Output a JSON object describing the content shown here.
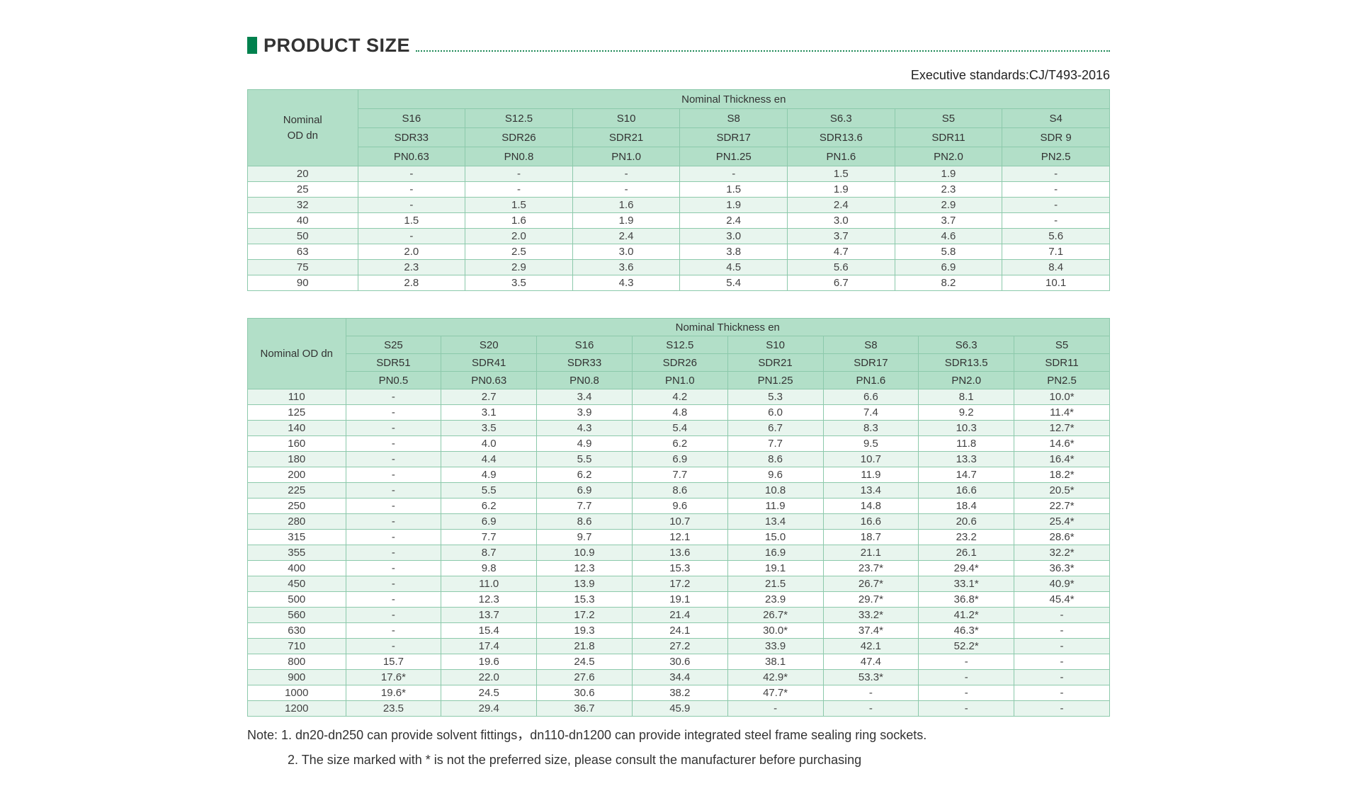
{
  "header": {
    "title": "PRODUCT SIZE",
    "standard": "Executive standards:CJ/T493-2016"
  },
  "colors": {
    "accent_green": "#00814e",
    "table_header_fill": "#b2dfc8",
    "row_stripe_fill": "#e8f5ee",
    "table_border": "#8cc9ab",
    "dotted_rule_green": "#1f8a57",
    "title_text": "#333333"
  },
  "tables": [
    {
      "name": "product-size-dn20-dn90",
      "corner_lines": [
        "Nominal",
        "OD dn"
      ],
      "span_header": "Nominal Thickness en",
      "s": [
        "S16",
        "S12.5",
        "S10",
        "S8",
        "S6.3",
        "S5",
        "S4"
      ],
      "sdr": [
        "SDR33",
        "SDR26",
        "SDR21",
        "SDR17",
        "SDR13.6",
        "SDR11",
        "SDR 9"
      ],
      "pn": [
        "PN0.63",
        "PN0.8",
        "PN1.0",
        "PN1.25",
        "PN1.6",
        "PN2.0",
        "PN2.5"
      ],
      "rows": [
        {
          "dn": "20",
          "values": [
            "-",
            "-",
            "-",
            "-",
            "1.5",
            "1.9",
            "-"
          ]
        },
        {
          "dn": "25",
          "values": [
            "-",
            "-",
            "-",
            "1.5",
            "1.9",
            "2.3",
            "-"
          ]
        },
        {
          "dn": "32",
          "values": [
            "-",
            "1.5",
            "1.6",
            "1.9",
            "2.4",
            "2.9",
            "-"
          ]
        },
        {
          "dn": "40",
          "values": [
            "1.5",
            "1.6",
            "1.9",
            "2.4",
            "3.0",
            "3.7",
            "-"
          ]
        },
        {
          "dn": "50",
          "values": [
            "-",
            "2.0",
            "2.4",
            "3.0",
            "3.7",
            "4.6",
            "5.6"
          ]
        },
        {
          "dn": "63",
          "values": [
            "2.0",
            "2.5",
            "3.0",
            "3.8",
            "4.7",
            "5.8",
            "7.1"
          ]
        },
        {
          "dn": "75",
          "values": [
            "2.3",
            "2.9",
            "3.6",
            "4.5",
            "5.6",
            "6.9",
            "8.4"
          ]
        },
        {
          "dn": "90",
          "values": [
            "2.8",
            "3.5",
            "4.3",
            "5.4",
            "6.7",
            "8.2",
            "10.1"
          ]
        }
      ]
    },
    {
      "name": "product-size-dn110-dn1200",
      "corner_lines": [
        "Nominal OD dn"
      ],
      "span_header": "Nominal Thickness en",
      "s": [
        "S25",
        "S20",
        "S16",
        "S12.5",
        "S10",
        "S8",
        "S6.3",
        "S5"
      ],
      "sdr": [
        "SDR51",
        "SDR41",
        "SDR33",
        "SDR26",
        "SDR21",
        "SDR17",
        "SDR13.5",
        "SDR11"
      ],
      "pn": [
        "PN0.5",
        "PN0.63",
        "PN0.8",
        "PN1.0",
        "PN1.25",
        "PN1.6",
        "PN2.0",
        "PN2.5"
      ],
      "rows": [
        {
          "dn": "110",
          "values": [
            "-",
            "2.7",
            "3.4",
            "4.2",
            "5.3",
            "6.6",
            "8.1",
            "10.0*"
          ]
        },
        {
          "dn": "125",
          "values": [
            "-",
            "3.1",
            "3.9",
            "4.8",
            "6.0",
            "7.4",
            "9.2",
            "11.4*"
          ]
        },
        {
          "dn": "140",
          "values": [
            "-",
            "3.5",
            "4.3",
            "5.4",
            "6.7",
            "8.3",
            "10.3",
            "12.7*"
          ]
        },
        {
          "dn": "160",
          "values": [
            "-",
            "4.0",
            "4.9",
            "6.2",
            "7.7",
            "9.5",
            "11.8",
            "14.6*"
          ]
        },
        {
          "dn": "180",
          "values": [
            "-",
            "4.4",
            "5.5",
            "6.9",
            "8.6",
            "10.7",
            "13.3",
            "16.4*"
          ]
        },
        {
          "dn": "200",
          "values": [
            "-",
            "4.9",
            "6.2",
            "7.7",
            "9.6",
            "11.9",
            "14.7",
            "18.2*"
          ]
        },
        {
          "dn": "225",
          "values": [
            "-",
            "5.5",
            "6.9",
            "8.6",
            "10.8",
            "13.4",
            "16.6",
            "20.5*"
          ]
        },
        {
          "dn": "250",
          "values": [
            "-",
            "6.2",
            "7.7",
            "9.6",
            "11.9",
            "14.8",
            "18.4",
            "22.7*"
          ]
        },
        {
          "dn": "280",
          "values": [
            "-",
            "6.9",
            "8.6",
            "10.7",
            "13.4",
            "16.6",
            "20.6",
            "25.4*"
          ]
        },
        {
          "dn": "315",
          "values": [
            "-",
            "7.7",
            "9.7",
            "12.1",
            "15.0",
            "18.7",
            "23.2",
            "28.6*"
          ]
        },
        {
          "dn": "355",
          "values": [
            "-",
            "8.7",
            "10.9",
            "13.6",
            "16.9",
            "21.1",
            "26.1",
            "32.2*"
          ]
        },
        {
          "dn": "400",
          "values": [
            "-",
            "9.8",
            "12.3",
            "15.3",
            "19.1",
            "23.7*",
            "29.4*",
            "36.3*"
          ]
        },
        {
          "dn": "450",
          "values": [
            "-",
            "11.0",
            "13.9",
            "17.2",
            "21.5",
            "26.7*",
            "33.1*",
            "40.9*"
          ]
        },
        {
          "dn": "500",
          "values": [
            "-",
            "12.3",
            "15.3",
            "19.1",
            "23.9",
            "29.7*",
            "36.8*",
            "45.4*"
          ]
        },
        {
          "dn": "560",
          "values": [
            "-",
            "13.7",
            "17.2",
            "21.4",
            "26.7*",
            "33.2*",
            "41.2*",
            "-"
          ]
        },
        {
          "dn": "630",
          "values": [
            "-",
            "15.4",
            "19.3",
            "24.1",
            "30.0*",
            "37.4*",
            "46.3*",
            "-"
          ]
        },
        {
          "dn": "710",
          "values": [
            "-",
            "17.4",
            "21.8",
            "27.2",
            "33.9",
            "42.1",
            "52.2*",
            "-"
          ]
        },
        {
          "dn": "800",
          "values": [
            "15.7",
            "19.6",
            "24.5",
            "30.6",
            "38.1",
            "47.4",
            "-",
            "-"
          ]
        },
        {
          "dn": "900",
          "values": [
            "17.6*",
            "22.0",
            "27.6",
            "34.4",
            "42.9*",
            "53.3*",
            "-",
            "-"
          ]
        },
        {
          "dn": "1000",
          "values": [
            "19.6*",
            "24.5",
            "30.6",
            "38.2",
            "47.7*",
            "-",
            "-",
            "-"
          ]
        },
        {
          "dn": "1200",
          "values": [
            "23.5",
            "29.4",
            "36.7",
            "45.9",
            "-",
            "-",
            "-",
            "-"
          ]
        }
      ]
    }
  ],
  "notes": [
    "Note: 1. dn20-dn250 can provide solvent fittings，dn110-dn1200 can provide integrated steel frame sealing ring sockets.",
    "2. The size marked with * is not the preferred size, please consult the manufacturer before purchasing"
  ]
}
